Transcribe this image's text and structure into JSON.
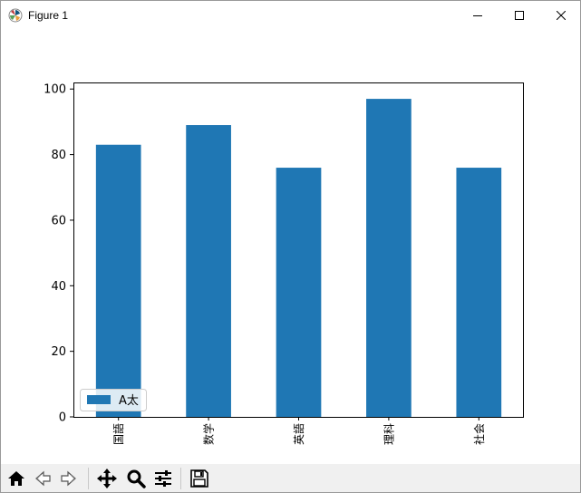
{
  "window": {
    "title": "Figure 1",
    "controls": [
      "minimize",
      "maximize",
      "close"
    ]
  },
  "toolbar": {
    "buttons": [
      {
        "name": "home",
        "icon": "home-icon"
      },
      {
        "name": "back",
        "icon": "back-arrow-icon"
      },
      {
        "name": "forward",
        "icon": "forward-arrow-icon"
      },
      {
        "name": "pan",
        "icon": "move-icon"
      },
      {
        "name": "zoom",
        "icon": "zoom-icon"
      },
      {
        "name": "configure-subplots",
        "icon": "sliders-icon"
      },
      {
        "name": "save",
        "icon": "save-icon"
      }
    ]
  },
  "chart_data": {
    "type": "bar",
    "categories": [
      "国語",
      "数学",
      "英語",
      "理科",
      "社会"
    ],
    "series": [
      {
        "name": "A太",
        "values": [
          83,
          89,
          76,
          97,
          76
        ],
        "color": "#1f77b4"
      }
    ],
    "yticks": [
      0,
      20,
      40,
      60,
      80,
      100
    ],
    "ylim": [
      0,
      102
    ],
    "grid": false,
    "legend_position": "lower-left",
    "xtick_rotation": "vertical"
  }
}
